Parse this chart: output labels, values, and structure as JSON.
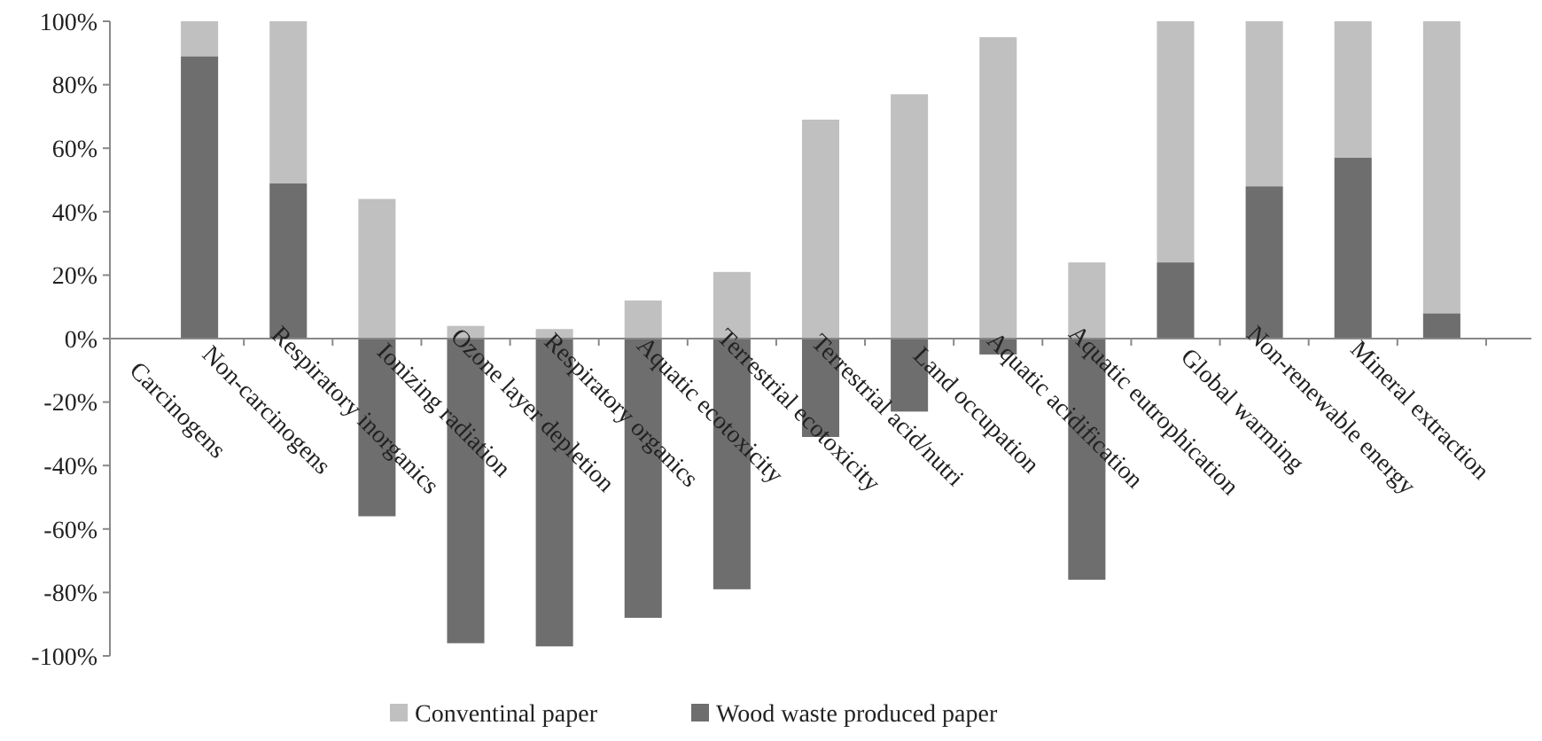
{
  "chart_data": {
    "type": "bar",
    "stacked": true,
    "legend": "bottom",
    "categories": [
      "Carcinogens",
      "Non-carcinogens",
      "Respiratory inorganics",
      "Ionizing radiation",
      "Ozone layer depletion",
      "Respiratory organics",
      "Aquatic ecotoxicity",
      "Terrestrial ecotoxicity",
      "Terrestrial acid/nutri",
      "Land occupation",
      "Aquatic acidification",
      "Aquatic eutrophication",
      "Global warming",
      "Non-renewable energy",
      "Mineral extraction"
    ],
    "series": [
      {
        "name": "Wood waste produced paper",
        "color": "#6e6e6e",
        "values": [
          89,
          49,
          -56,
          -96,
          -97,
          -88,
          -79,
          -31,
          -23,
          -5,
          -76,
          24,
          48,
          57,
          8
        ]
      },
      {
        "name": "Conventinal paper",
        "color": "#c0c0c0",
        "values": [
          11,
          51,
          44,
          4,
          3,
          12,
          21,
          69,
          77,
          95,
          24,
          76,
          52,
          43,
          92
        ]
      }
    ],
    "ylim": [
      -100,
      100
    ],
    "yticks": [
      {
        "value": -100,
        "label": "-100%"
      },
      {
        "value": -80,
        "label": "-80%"
      },
      {
        "value": -60,
        "label": "-60%"
      },
      {
        "value": -40,
        "label": "-40%"
      },
      {
        "value": -20,
        "label": "-20%"
      },
      {
        "value": 0,
        "label": "0%"
      },
      {
        "value": 20,
        "label": "20%"
      },
      {
        "value": 40,
        "label": "40%"
      },
      {
        "value": 60,
        "label": "60%"
      },
      {
        "value": 80,
        "label": "80%"
      },
      {
        "value": 100,
        "label": "100%"
      }
    ]
  }
}
